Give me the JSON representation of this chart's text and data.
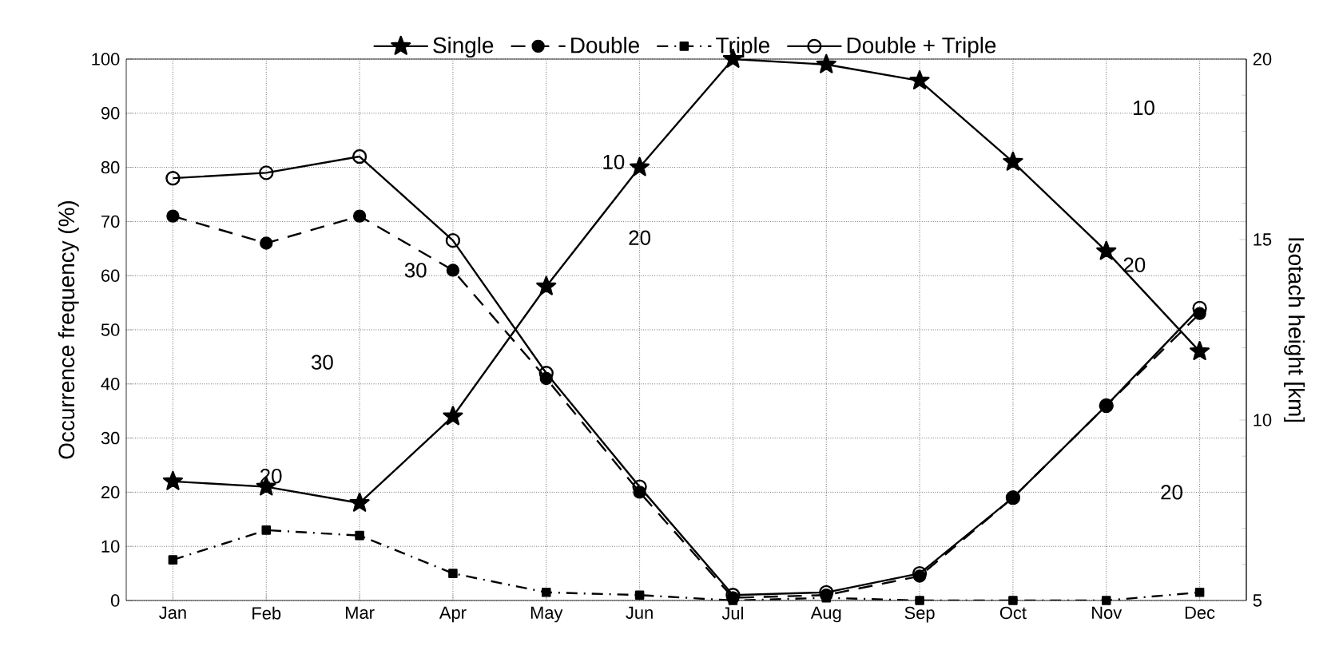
{
  "chart_data": {
    "type": "line",
    "categories": [
      "Jan",
      "Feb",
      "Mar",
      "Apr",
      "May",
      "Jun",
      "Jul",
      "Aug",
      "Sep",
      "Oct",
      "Nov",
      "Dec"
    ],
    "series": [
      {
        "name": "Single",
        "color": "#000000",
        "marker": "star",
        "line_style": "solid",
        "values": [
          22,
          21,
          18,
          34,
          58,
          80,
          100,
          99,
          96,
          81,
          64.5,
          46
        ]
      },
      {
        "name": "Double",
        "color": "#000000",
        "marker": "circle",
        "line_style": "dashed",
        "values": [
          71,
          66,
          71,
          61,
          41,
          20,
          0.5,
          1,
          4.5,
          19,
          36,
          53
        ]
      },
      {
        "name": "Triple",
        "color": "#000000",
        "marker": "square",
        "line_style": "dashdot",
        "values": [
          7.5,
          13,
          12,
          5,
          1.5,
          1,
          0,
          0.5,
          0,
          0,
          0,
          1.5
        ]
      },
      {
        "name": "Double + Triple",
        "color": "#000000",
        "marker": "open circle",
        "line_style": "solid",
        "values": [
          78,
          79,
          82,
          66.5,
          42,
          21,
          1,
          1.5,
          5,
          19,
          36,
          54
        ]
      }
    ],
    "ylabel": "Occurrence frequency (%)",
    "y2label": "Isotach height [km]",
    "ylim": [
      0,
      100
    ],
    "yticks": [
      0,
      10,
      20,
      30,
      40,
      50,
      60,
      70,
      80,
      90,
      100
    ],
    "y2lim": [
      5,
      20
    ],
    "y2ticks": [
      5,
      10,
      15,
      20
    ],
    "annotations": [
      "10",
      "20",
      "30",
      "30",
      "20",
      "10",
      "20",
      "20"
    ],
    "grid": true,
    "legend": "top"
  }
}
